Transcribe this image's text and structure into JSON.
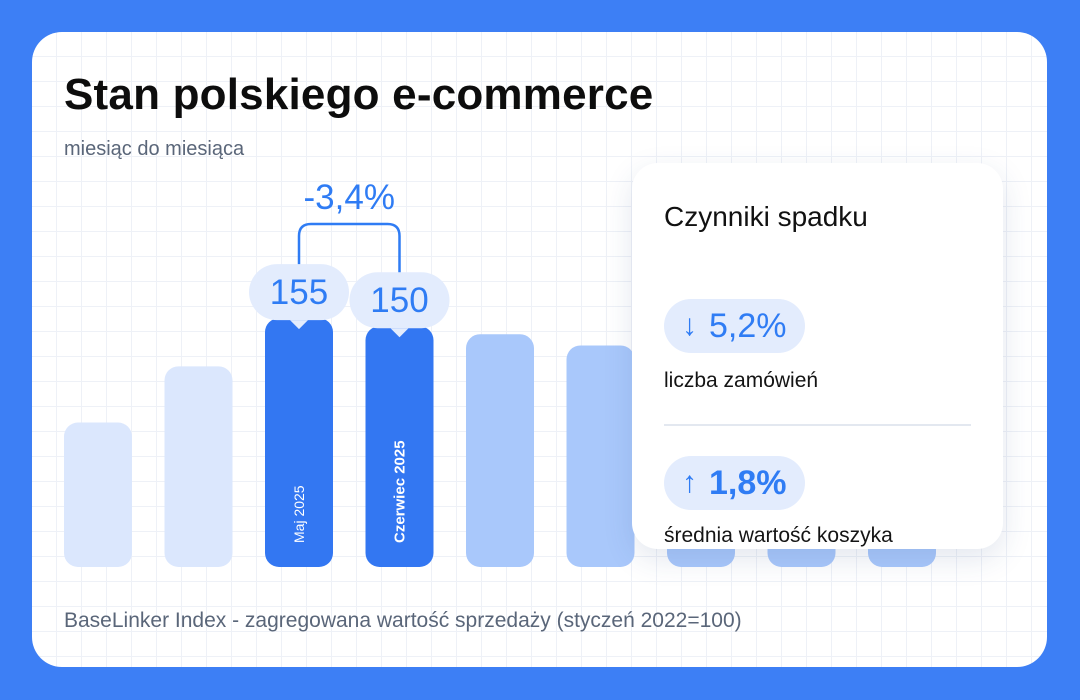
{
  "title": "Stan polskiego e-commerce",
  "subtitle": "miesiąc do miesiąca",
  "footer": "BaseLinker Index - zagregowana wartość sprzedaży (styczeń 2022=100)",
  "change_label": "-3,4%",
  "colors": {
    "background": "#3d7ff5",
    "accent": "#2f7cf4",
    "bar_highlight": "#3377f2",
    "bar_mid": "#a9c8fb",
    "bar_light": "#dbe7fd",
    "pill_bg": "#e3ecfd"
  },
  "panel": {
    "title": "Czynniki spadku",
    "factors": [
      {
        "arrow": "↓",
        "value": "5,2%",
        "label": "liczba zamówień",
        "icon": "arrow-down-icon"
      },
      {
        "arrow": "↑",
        "value": "1,8%",
        "label": "średnia wartość koszyka",
        "icon": "arrow-up-icon"
      }
    ]
  },
  "chart_data": {
    "type": "bar",
    "title": "Stan polskiego e-commerce",
    "subtitle": "miesiąc do miesiąca",
    "ylabel": "BaseLinker Index - zagregowana wartość sprzedaży (styczeń 2022=100)",
    "categories": [
      "",
      "",
      "Maj 2025",
      "Czerwiec 2025",
      "",
      "",
      "",
      "",
      ""
    ],
    "values": [
      90,
      125,
      155,
      150,
      145,
      138,
      null,
      null,
      null
    ],
    "highlighted": [
      "Maj 2025",
      "Czerwiec 2025"
    ],
    "value_labels": {
      "Maj 2025": "155",
      "Czerwiec 2025": "150"
    },
    "annotation": "-3,4%",
    "ylim": [
      0,
      185
    ],
    "grid": true
  }
}
